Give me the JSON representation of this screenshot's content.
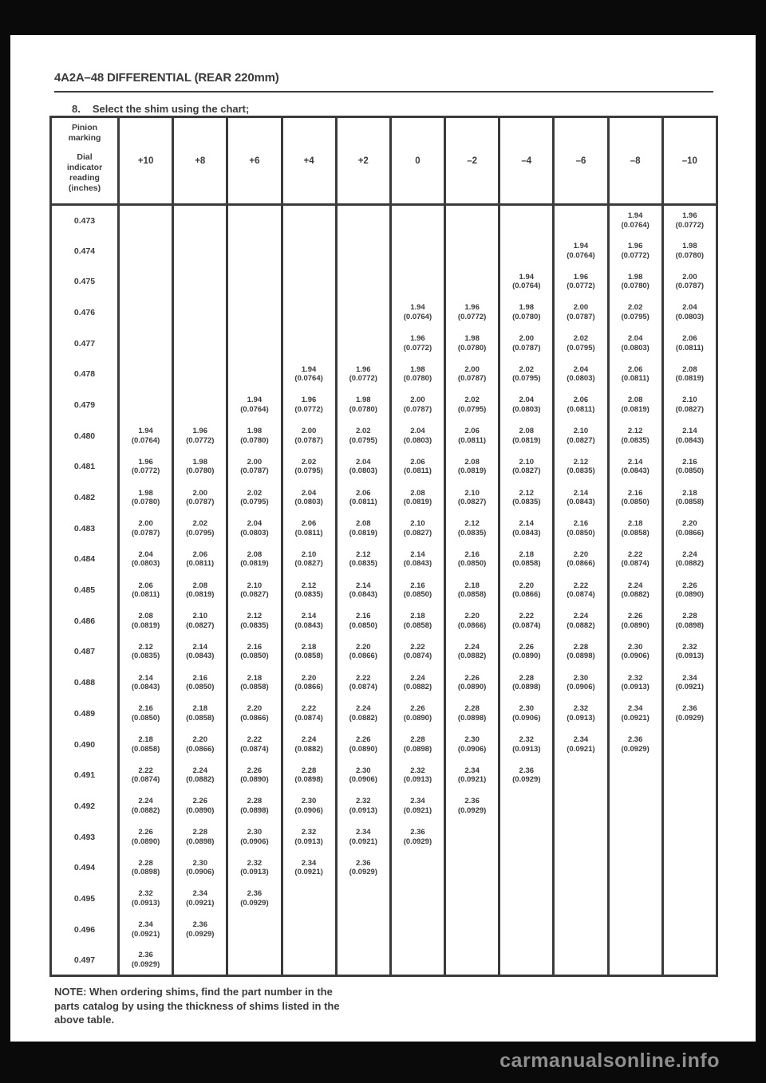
{
  "page": {
    "header_title": "4A2A–48 DIFFERENTIAL (REAR 220mm)",
    "step_number": "8.",
    "step_text": "Select the shim using the chart;",
    "note_lines": [
      "NOTE: When ordering shims, find the part number in the",
      "parts catalog by using the thickness of shims listed in the",
      "above table."
    ],
    "watermark": "carmanualsonline.info"
  },
  "table": {
    "corner_header_top": [
      "Pinion",
      "marking"
    ],
    "corner_header_bottom": [
      "Dial",
      "indicator",
      "reading",
      "(inches)"
    ],
    "columns": [
      "+10",
      "+8",
      "+6",
      "+4",
      "+2",
      "0",
      "–2",
      "–4",
      "–6",
      "–8",
      "–10"
    ],
    "rows": [
      {
        "label": "0.473",
        "cells": [
          null,
          null,
          null,
          null,
          null,
          null,
          null,
          null,
          null,
          [
            "1.94",
            "(0.0764)"
          ],
          [
            "1.96",
            "(0.0772)"
          ]
        ]
      },
      {
        "label": "0.474",
        "cells": [
          null,
          null,
          null,
          null,
          null,
          null,
          null,
          null,
          [
            "1.94",
            "(0.0764)"
          ],
          [
            "1.96",
            "(0.0772)"
          ],
          [
            "1.98",
            "(0.0780)"
          ]
        ]
      },
      {
        "label": "0.475",
        "cells": [
          null,
          null,
          null,
          null,
          null,
          null,
          null,
          [
            "1.94",
            "(0.0764)"
          ],
          [
            "1.96",
            "(0.0772)"
          ],
          [
            "1.98",
            "(0.0780)"
          ],
          [
            "2.00",
            "(0.0787)"
          ]
        ]
      },
      {
        "label": "0.476",
        "cells": [
          null,
          null,
          null,
          null,
          null,
          [
            "1.94",
            "(0.0764)"
          ],
          [
            "1.96",
            "(0.0772)"
          ],
          [
            "1.98",
            "(0.0780)"
          ],
          [
            "2.00",
            "(0.0787)"
          ],
          [
            "2.02",
            "(0.0795)"
          ],
          [
            "2.04",
            "(0.0803)"
          ]
        ]
      },
      {
        "label": "0.477",
        "cells": [
          null,
          null,
          null,
          null,
          null,
          [
            "1.96",
            "(0.0772)"
          ],
          [
            "1.98",
            "(0.0780)"
          ],
          [
            "2.00",
            "(0.0787)"
          ],
          [
            "2.02",
            "(0.0795)"
          ],
          [
            "2.04",
            "(0.0803)"
          ],
          [
            "2.06",
            "(0.0811)"
          ]
        ]
      },
      {
        "label": "0.478",
        "cells": [
          null,
          null,
          null,
          [
            "1.94",
            "(0.0764)"
          ],
          [
            "1.96",
            "(0.0772)"
          ],
          [
            "1.98",
            "(0.0780)"
          ],
          [
            "2.00",
            "(0.0787)"
          ],
          [
            "2.02",
            "(0.0795)"
          ],
          [
            "2.04",
            "(0.0803)"
          ],
          [
            "2.06",
            "(0.0811)"
          ],
          [
            "2.08",
            "(0.0819)"
          ]
        ]
      },
      {
        "label": "0.479",
        "cells": [
          null,
          null,
          [
            "1.94",
            "(0.0764)"
          ],
          [
            "1.96",
            "(0.0772)"
          ],
          [
            "1.98",
            "(0.0780)"
          ],
          [
            "2.00",
            "(0.0787)"
          ],
          [
            "2.02",
            "(0.0795)"
          ],
          [
            "2.04",
            "(0.0803)"
          ],
          [
            "2.06",
            "(0.0811)"
          ],
          [
            "2.08",
            "(0.0819)"
          ],
          [
            "2.10",
            "(0.0827)"
          ]
        ]
      },
      {
        "label": "0.480",
        "cells": [
          [
            "1.94",
            "(0.0764)"
          ],
          [
            "1.96",
            "(0.0772)"
          ],
          [
            "1.98",
            "(0.0780)"
          ],
          [
            "2.00",
            "(0.0787)"
          ],
          [
            "2.02",
            "(0.0795)"
          ],
          [
            "2.04",
            "(0.0803)"
          ],
          [
            "2.06",
            "(0.0811)"
          ],
          [
            "2.08",
            "(0.0819)"
          ],
          [
            "2.10",
            "(0.0827)"
          ],
          [
            "2.12",
            "(0.0835)"
          ],
          [
            "2.14",
            "(0.0843)"
          ]
        ]
      },
      {
        "label": "0.481",
        "cells": [
          [
            "1.96",
            "(0.0772)"
          ],
          [
            "1.98",
            "(0.0780)"
          ],
          [
            "2.00",
            "(0.0787)"
          ],
          [
            "2.02",
            "(0.0795)"
          ],
          [
            "2.04",
            "(0.0803)"
          ],
          [
            "2.06",
            "(0.0811)"
          ],
          [
            "2.08",
            "(0.0819)"
          ],
          [
            "2.10",
            "(0.0827)"
          ],
          [
            "2.12",
            "(0.0835)"
          ],
          [
            "2.14",
            "(0.0843)"
          ],
          [
            "2.16",
            "(0.0850)"
          ]
        ]
      },
      {
        "label": "0.482",
        "cells": [
          [
            "1.98",
            "(0.0780)"
          ],
          [
            "2.00",
            "(0.0787)"
          ],
          [
            "2.02",
            "(0.0795)"
          ],
          [
            "2.04",
            "(0.0803)"
          ],
          [
            "2.06",
            "(0.0811)"
          ],
          [
            "2.08",
            "(0.0819)"
          ],
          [
            "2.10",
            "(0.0827)"
          ],
          [
            "2.12",
            "(0.0835)"
          ],
          [
            "2.14",
            "(0.0843)"
          ],
          [
            "2.16",
            "(0.0850)"
          ],
          [
            "2.18",
            "(0.0858)"
          ]
        ]
      },
      {
        "label": "0.483",
        "cells": [
          [
            "2.00",
            "(0.0787)"
          ],
          [
            "2.02",
            "(0.0795)"
          ],
          [
            "2.04",
            "(0.0803)"
          ],
          [
            "2.06",
            "(0.0811)"
          ],
          [
            "2.08",
            "(0.0819)"
          ],
          [
            "2.10",
            "(0.0827)"
          ],
          [
            "2.12",
            "(0.0835)"
          ],
          [
            "2.14",
            "(0.0843)"
          ],
          [
            "2.16",
            "(0.0850)"
          ],
          [
            "2.18",
            "(0.0858)"
          ],
          [
            "2.20",
            "(0.0866)"
          ]
        ]
      },
      {
        "label": "0.484",
        "cells": [
          [
            "2.04",
            "(0.0803)"
          ],
          [
            "2.06",
            "(0.0811)"
          ],
          [
            "2.08",
            "(0.0819)"
          ],
          [
            "2.10",
            "(0.0827)"
          ],
          [
            "2.12",
            "(0.0835)"
          ],
          [
            "2.14",
            "(0.0843)"
          ],
          [
            "2.16",
            "(0.0850)"
          ],
          [
            "2.18",
            "(0.0858)"
          ],
          [
            "2.20",
            "(0.0866)"
          ],
          [
            "2.22",
            "(0.0874)"
          ],
          [
            "2.24",
            "(0.0882)"
          ]
        ]
      },
      {
        "label": "0.485",
        "cells": [
          [
            "2.06",
            "(0.0811)"
          ],
          [
            "2.08",
            "(0.0819)"
          ],
          [
            "2.10",
            "(0.0827)"
          ],
          [
            "2.12",
            "(0.0835)"
          ],
          [
            "2.14",
            "(0.0843)"
          ],
          [
            "2.16",
            "(0.0850)"
          ],
          [
            "2.18",
            "(0.0858)"
          ],
          [
            "2.20",
            "(0.0866)"
          ],
          [
            "2.22",
            "(0.0874)"
          ],
          [
            "2.24",
            "(0.0882)"
          ],
          [
            "2.26",
            "(0.0890)"
          ]
        ]
      },
      {
        "label": "0.486",
        "cells": [
          [
            "2.08",
            "(0.0819)"
          ],
          [
            "2.10",
            "(0.0827)"
          ],
          [
            "2.12",
            "(0.0835)"
          ],
          [
            "2.14",
            "(0.0843)"
          ],
          [
            "2.16",
            "(0.0850)"
          ],
          [
            "2.18",
            "(0.0858)"
          ],
          [
            "2.20",
            "(0.0866)"
          ],
          [
            "2.22",
            "(0.0874)"
          ],
          [
            "2.24",
            "(0.0882)"
          ],
          [
            "2.26",
            "(0.0890)"
          ],
          [
            "2.28",
            "(0.0898)"
          ]
        ]
      },
      {
        "label": "0.487",
        "cells": [
          [
            "2.12",
            "(0.0835)"
          ],
          [
            "2.14",
            "(0.0843)"
          ],
          [
            "2.16",
            "(0.0850)"
          ],
          [
            "2.18",
            "(0.0858)"
          ],
          [
            "2.20",
            "(0.0866)"
          ],
          [
            "2.22",
            "(0.0874)"
          ],
          [
            "2.24",
            "(0.0882)"
          ],
          [
            "2.26",
            "(0.0890)"
          ],
          [
            "2.28",
            "(0.0898)"
          ],
          [
            "2.30",
            "(0.0906)"
          ],
          [
            "2.32",
            "(0.0913)"
          ]
        ]
      },
      {
        "label": "0.488",
        "cells": [
          [
            "2.14",
            "(0.0843)"
          ],
          [
            "2.16",
            "(0.0850)"
          ],
          [
            "2.18",
            "(0.0858)"
          ],
          [
            "2.20",
            "(0.0866)"
          ],
          [
            "2.22",
            "(0.0874)"
          ],
          [
            "2.24",
            "(0.0882)"
          ],
          [
            "2.26",
            "(0.0890)"
          ],
          [
            "2.28",
            "(0.0898)"
          ],
          [
            "2.30",
            "(0.0906)"
          ],
          [
            "2.32",
            "(0.0913)"
          ],
          [
            "2.34",
            "(0.0921)"
          ]
        ]
      },
      {
        "label": "0.489",
        "cells": [
          [
            "2.16",
            "(0.0850)"
          ],
          [
            "2.18",
            "(0.0858)"
          ],
          [
            "2.20",
            "(0.0866)"
          ],
          [
            "2.22",
            "(0.0874)"
          ],
          [
            "2.24",
            "(0.0882)"
          ],
          [
            "2.26",
            "(0.0890)"
          ],
          [
            "2.28",
            "(0.0898)"
          ],
          [
            "2.30",
            "(0.0906)"
          ],
          [
            "2.32",
            "(0.0913)"
          ],
          [
            "2.34",
            "(0.0921)"
          ],
          [
            "2.36",
            "(0.0929)"
          ]
        ]
      },
      {
        "label": "0.490",
        "cells": [
          [
            "2.18",
            "(0.0858)"
          ],
          [
            "2.20",
            "(0.0866)"
          ],
          [
            "2.22",
            "(0.0874)"
          ],
          [
            "2.24",
            "(0.0882)"
          ],
          [
            "2.26",
            "(0.0890)"
          ],
          [
            "2.28",
            "(0.0898)"
          ],
          [
            "2.30",
            "(0.0906)"
          ],
          [
            "2.32",
            "(0.0913)"
          ],
          [
            "2.34",
            "(0.0921)"
          ],
          [
            "2.36",
            "(0.0929)"
          ],
          null
        ]
      },
      {
        "label": "0.491",
        "cells": [
          [
            "2.22",
            "(0.0874)"
          ],
          [
            "2.24",
            "(0.0882)"
          ],
          [
            "2.26",
            "(0.0890)"
          ],
          [
            "2.28",
            "(0.0898)"
          ],
          [
            "2.30",
            "(0.0906)"
          ],
          [
            "2.32",
            "(0.0913)"
          ],
          [
            "2.34",
            "(0.0921)"
          ],
          [
            "2.36",
            "(0.0929)"
          ],
          null,
          null,
          null
        ]
      },
      {
        "label": "0.492",
        "cells": [
          [
            "2.24",
            "(0.0882)"
          ],
          [
            "2.26",
            "(0.0890)"
          ],
          [
            "2.28",
            "(0.0898)"
          ],
          [
            "2.30",
            "(0.0906)"
          ],
          [
            "2.32",
            "(0.0913)"
          ],
          [
            "2.34",
            "(0.0921)"
          ],
          [
            "2.36",
            "(0.0929)"
          ],
          null,
          null,
          null,
          null
        ]
      },
      {
        "label": "0.493",
        "cells": [
          [
            "2.26",
            "(0.0890)"
          ],
          [
            "2.28",
            "(0.0898)"
          ],
          [
            "2.30",
            "(0.0906)"
          ],
          [
            "2.32",
            "(0.0913)"
          ],
          [
            "2.34",
            "(0.0921)"
          ],
          [
            "2.36",
            "(0.0929)"
          ],
          null,
          null,
          null,
          null,
          null
        ]
      },
      {
        "label": "0.494",
        "cells": [
          [
            "2.28",
            "(0.0898)"
          ],
          [
            "2.30",
            "(0.0906)"
          ],
          [
            "2.32",
            "(0.0913)"
          ],
          [
            "2.34",
            "(0.0921)"
          ],
          [
            "2.36",
            "(0.0929)"
          ],
          null,
          null,
          null,
          null,
          null,
          null
        ]
      },
      {
        "label": "0.495",
        "cells": [
          [
            "2.32",
            "(0.0913)"
          ],
          [
            "2.34",
            "(0.0921)"
          ],
          [
            "2.36",
            "(0.0929)"
          ],
          null,
          null,
          null,
          null,
          null,
          null,
          null,
          null
        ]
      },
      {
        "label": "0.496",
        "cells": [
          [
            "2.34",
            "(0.0921)"
          ],
          [
            "2.36",
            "(0.0929)"
          ],
          null,
          null,
          null,
          null,
          null,
          null,
          null,
          null,
          null
        ]
      },
      {
        "label": "0.497",
        "cells": [
          [
            "2.36",
            "(0.0929)"
          ],
          null,
          null,
          null,
          null,
          null,
          null,
          null,
          null,
          null,
          null
        ]
      }
    ]
  }
}
